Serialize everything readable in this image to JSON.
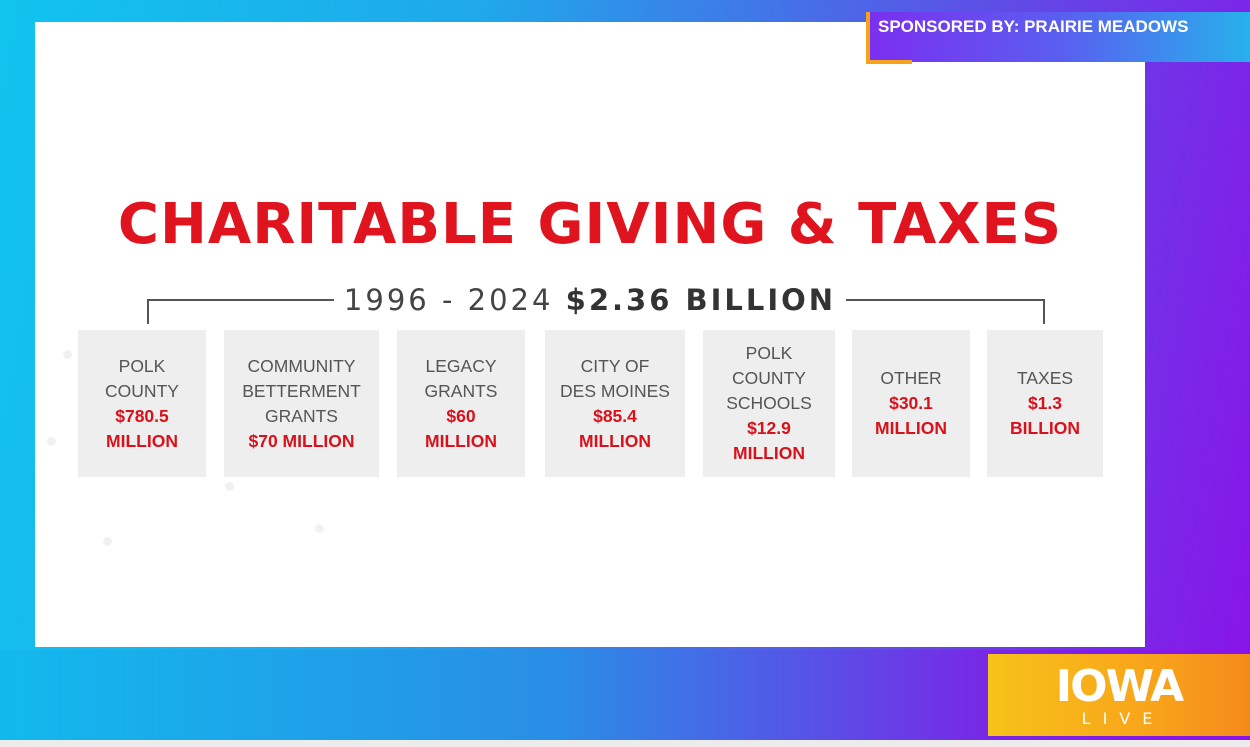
{
  "slide": {
    "title": "CHARITABLE GIVING & TAXES",
    "range_years": "1996 - 2024",
    "range_total": "$2.36 BILLION",
    "categories": [
      {
        "label": "POLK\nCOUNTY",
        "amount": "$780.5\nMILLION"
      },
      {
        "label": "COMMUNITY\nBETTERMENT\nGRANTS",
        "amount": "$70 MILLION"
      },
      {
        "label": "LEGACY\nGRANTS",
        "amount": "$60\nMILLION"
      },
      {
        "label": "CITY OF\nDES MOINES",
        "amount": "$85.4\nMILLION"
      },
      {
        "label": "POLK\nCOUNTY\nSCHOOLS",
        "amount": "$12.9\nMILLION"
      },
      {
        "label": "OTHER",
        "amount": "$30.1\nMILLION"
      },
      {
        "label": "TAXES",
        "amount": "$1.3\nBILLION"
      }
    ]
  },
  "overlay": {
    "sponsor_text": "SPONSORED BY: PRAIRIE MEADOWS",
    "logo_top": "IOWA",
    "logo_bottom": "LIVE"
  },
  "colors": {
    "title_red": "#e0141e",
    "logo_orange": "#f8a51a",
    "bg_cyan": "#11c4ee",
    "bg_purple": "#8a12e8"
  }
}
